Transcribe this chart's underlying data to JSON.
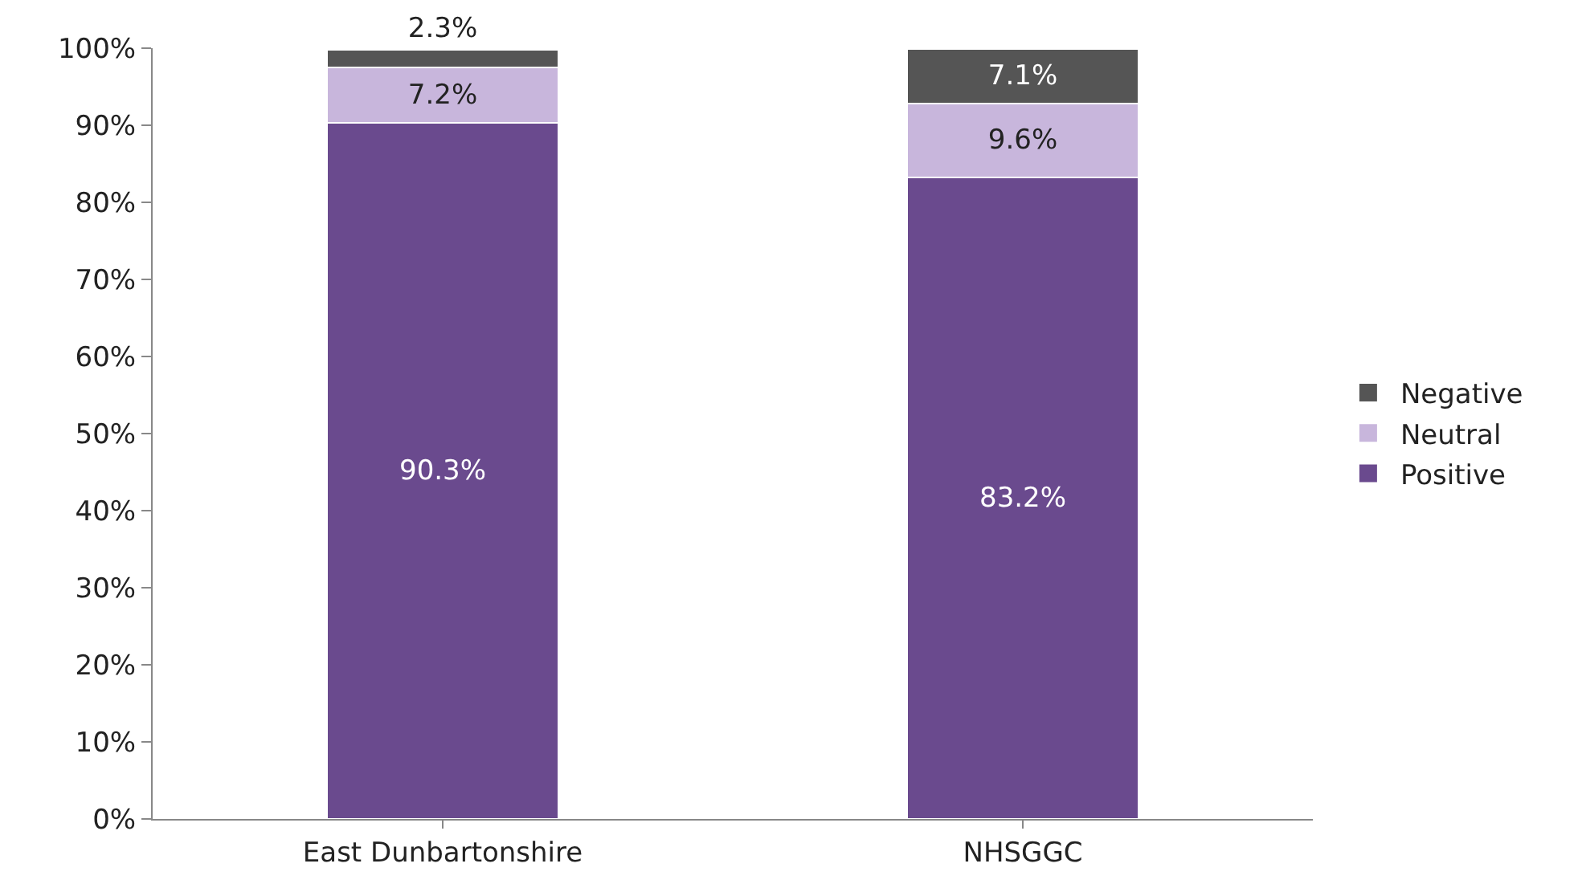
{
  "chart_data": {
    "type": "bar",
    "stacked": true,
    "categories": [
      "East Dunbartonshire",
      "NHSGGC"
    ],
    "series": [
      {
        "name": "Positive",
        "color": "#6a4a8e",
        "values": [
          90.3,
          83.2
        ],
        "value_labels": [
          "90.3%",
          "83.2%"
        ]
      },
      {
        "name": "Neutral",
        "color": "#c8b6dc",
        "values": [
          7.2,
          9.6
        ],
        "value_labels": [
          "7.2%",
          "9.6%"
        ]
      },
      {
        "name": "Negative",
        "color": "#555555",
        "values": [
          2.3,
          7.1
        ],
        "value_labels": [
          "2.3%",
          "7.1%"
        ]
      }
    ],
    "ylim": [
      0,
      100
    ],
    "yticks": [
      {
        "value": 0,
        "label": "0%"
      },
      {
        "value": 10,
        "label": "10%"
      },
      {
        "value": 20,
        "label": "20%"
      },
      {
        "value": 30,
        "label": "30%"
      },
      {
        "value": 40,
        "label": "40%"
      },
      {
        "value": 50,
        "label": "50%"
      },
      {
        "value": 60,
        "label": "60%"
      },
      {
        "value": 70,
        "label": "70%"
      },
      {
        "value": 80,
        "label": "80%"
      },
      {
        "value": 90,
        "label": "90%"
      },
      {
        "value": 100,
        "label": "100%"
      }
    ],
    "grid": false,
    "legend": "right"
  }
}
